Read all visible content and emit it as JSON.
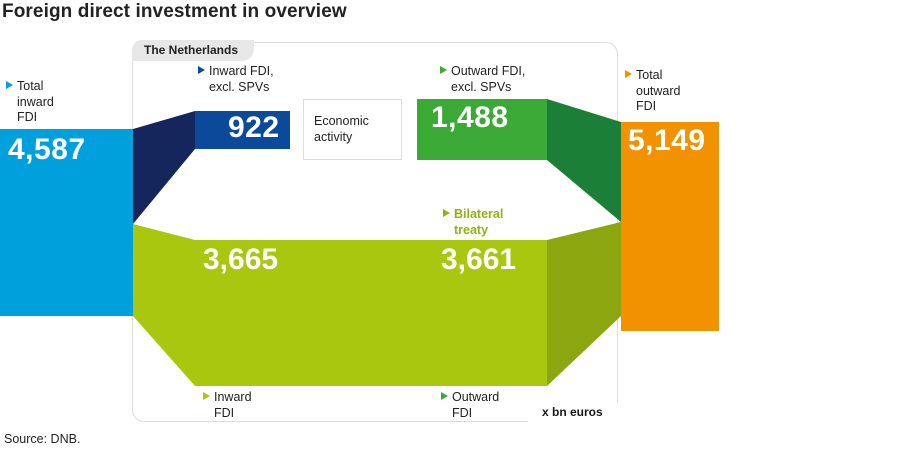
{
  "title": "Foreign direct investment in overview",
  "panel_title": "The Netherlands",
  "unit": "x bn euros",
  "source": "Source: DNB.",
  "economic_activity": [
    "Economic",
    "activity"
  ],
  "colors": {
    "total_inward": "#00a0dc",
    "inward_excl_spv": "#0b4a9a",
    "inward_excl_spv_dark": "#14265c",
    "outward_excl_spv": "#3aa935",
    "outward_excl_spv_dark": "#1b7f38",
    "bilateral": "#a9c70e",
    "bilateral_dark": "#8ca60f",
    "bilateral_label": "#8fb30f",
    "total_outward": "#f39200"
  },
  "nodes": {
    "total_inward": {
      "label": [
        "Total",
        "inward",
        "FDI"
      ],
      "value": "4,587"
    },
    "inward_excl_spv": {
      "label": [
        "Inward FDI,",
        "excl. SPVs"
      ],
      "value": "922"
    },
    "outward_excl_spv": {
      "label": [
        "Outward FDI,",
        "excl. SPVs"
      ],
      "value": "1,488"
    },
    "total_outward": {
      "label": [
        "Total",
        "outward",
        "FDI"
      ],
      "value": "5,149"
    },
    "bilateral": {
      "label": [
        "Bilateral",
        "treaty"
      ],
      "inward_value": "3,665",
      "outward_value": "3,661"
    },
    "inward_fdi": {
      "label": [
        "Inward",
        "FDI"
      ]
    },
    "outward_fdi": {
      "label": [
        "Outward",
        "FDI"
      ]
    }
  }
}
